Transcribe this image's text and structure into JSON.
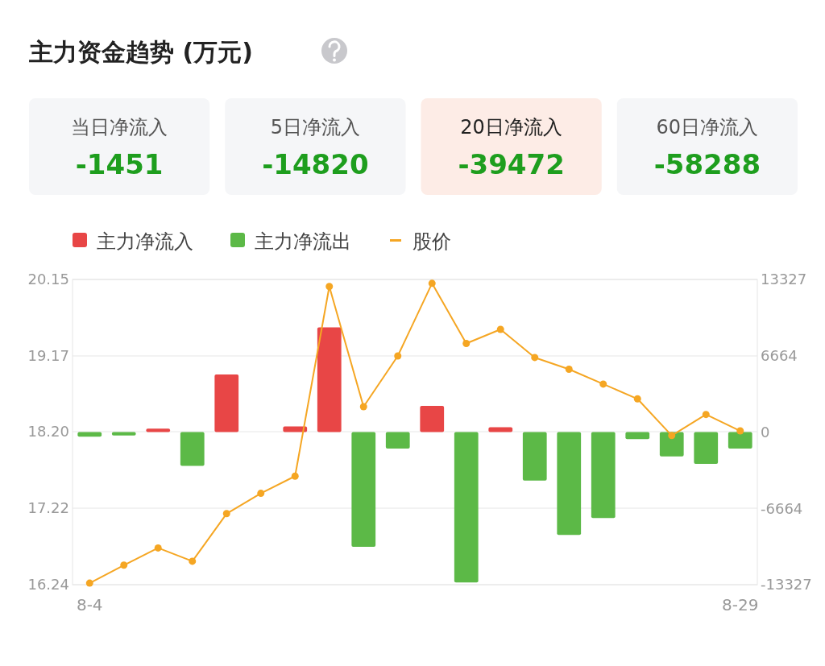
{
  "chart_data": [
    {
      "type": "other",
      "title": "主力资金趋势 (万元)",
      "annotations": [
        "当日净流入",
        "-1451",
        "5日净流入",
        "-14820",
        "20日净流入",
        "-39472",
        "60日净流入",
        "-58288"
      ]
    },
    {
      "type": "bar",
      "categories": [
        "8-4",
        null,
        null,
        null,
        null,
        null,
        null,
        null,
        null,
        null,
        null,
        null,
        null,
        null,
        null,
        null,
        null,
        null,
        null,
        "8-29"
      ],
      "series": [
        {
          "name": "主力净流入",
          "type": "bar",
          "axis": "y2",
          "color": "#e84646",
          "values": [
            null,
            null,
            300,
            null,
            5030,
            0,
            490,
            9140,
            null,
            null,
            2290,
            null,
            420,
            null,
            null,
            null,
            null,
            null,
            null,
            null
          ]
        },
        {
          "name": "主力净流出",
          "type": "bar",
          "axis": "y2",
          "color": "#5cb947",
          "values": [
            -400,
            -300,
            null,
            -2950,
            null,
            null,
            null,
            null,
            -10030,
            -1450,
            null,
            -13130,
            null,
            -4230,
            -8980,
            -7500,
            -610,
            -2130,
            -2780,
            -1450
          ]
        },
        {
          "name": "股价",
          "type": "line",
          "axis": "y",
          "color": "#f5a623",
          "marker": "circle",
          "values": [
            16.26,
            16.49,
            16.71,
            16.54,
            17.15,
            17.41,
            17.63,
            20.06,
            18.52,
            19.17,
            20.1,
            19.33,
            19.51,
            19.15,
            19.0,
            18.81,
            18.62,
            18.15,
            18.42,
            18.21
          ]
        }
      ],
      "ylim": [
        16.24,
        20.15
      ],
      "yticks": [
        16.24,
        17.22,
        {
          "value": 18.2,
          "label": "18.20"
        },
        {
          "value": 19.17,
          "label": "19.17"
        },
        {
          "value": 20.15,
          "label": "20.15"
        }
      ],
      "y2lim": [
        -13327,
        13327
      ],
      "y2ticks": [
        -13327,
        -6664,
        0,
        6664,
        13327
      ],
      "grid": "y",
      "legend": "top left"
    }
  ]
}
